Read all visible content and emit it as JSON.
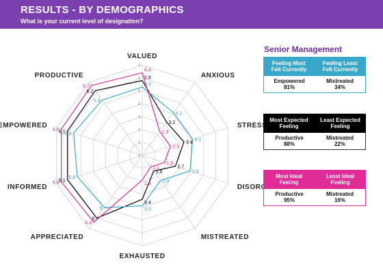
{
  "header": {
    "title": "RESULTS - BY DEMOGRAPHICS",
    "subtitle": "What is your current level of designation?"
  },
  "panel": {
    "title": "Senior Management",
    "cards": [
      {
        "name": "current",
        "color": "#3aa6c9",
        "body_border": "#3aa6c9",
        "left_header": [
          "Feeling Most",
          "Felt Currently"
        ],
        "right_header": [
          "Feeling Least",
          "Felt Currently"
        ],
        "left_label": "Empowered",
        "left_value": "81%",
        "right_label": "Mistreated",
        "right_value": "34%"
      },
      {
        "name": "expected",
        "color": "#000000",
        "body_border": "#333333",
        "left_header": [
          "Most Expected",
          "Feeling"
        ],
        "right_header": [
          "Least Expected",
          "Feeling"
        ],
        "left_label": "Productive",
        "left_value": "88%",
        "right_label": "Mistreated",
        "right_value": "22%"
      },
      {
        "name": "ideal",
        "color": "#e02c97",
        "body_border": "#e02c97",
        "left_header": [
          "Most Ideal",
          "Feeling"
        ],
        "right_header": [
          "Least Ideal",
          "Feeling"
        ],
        "left_label": "Productive",
        "left_value": "95%",
        "right_label": "Mistreated",
        "right_value": "16%"
      }
    ]
  },
  "chart_data": {
    "type": "radar",
    "axes": [
      "VALUED",
      "ANXIOUS",
      "STRESSED",
      "DISORGANISED",
      "MISTREATED",
      "EXHAUSTED",
      "APPRECIATED",
      "INFORMED",
      "EMPOWERED",
      "PRODUCTIVE"
    ],
    "axis_display": [
      "VALUED",
      "ANXIOUS",
      "STRESSED",
      "DISORGANIS",
      "MISTREATED",
      "EXHAUSTED",
      "APPRECIATED",
      "INFORMED",
      "EMPOWERED",
      "PRODUCTIVE"
    ],
    "range": [
      0,
      7
    ],
    "ticks": [
      0,
      1,
      2,
      3,
      4,
      5,
      6,
      7
    ],
    "tick_labels": [
      "0",
      "1",
      "2",
      "3",
      "4",
      "5",
      "6",
      "7"
    ],
    "series": [
      {
        "key": "expected",
        "color": "#000000",
        "values": [
          5.8,
          3.2,
          3.4,
          2.7,
          1.5,
          3.4,
          6.0,
          6.1,
          6.1,
          6.2
        ]
      },
      {
        "key": "current",
        "color": "#3aa6c9",
        "values": [
          5.3,
          4.1,
          4.1,
          3.9,
          2.4,
          3.9,
          5.0,
          5.3,
          5.6,
          5.3
        ]
      },
      {
        "key": "ideal",
        "color": "#e02c97",
        "values": [
          6.4,
          2.3,
          2.3,
          1.8,
          1.1,
          1.9,
          6.4,
          6.6,
          6.6,
          6.7
        ]
      }
    ]
  }
}
